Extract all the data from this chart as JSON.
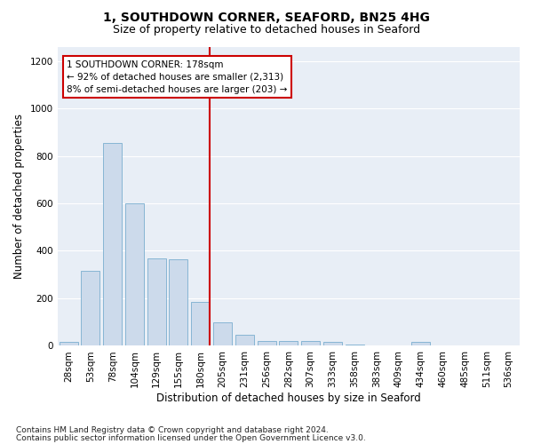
{
  "title": "1, SOUTHDOWN CORNER, SEAFORD, BN25 4HG",
  "subtitle": "Size of property relative to detached houses in Seaford",
  "xlabel": "Distribution of detached houses by size in Seaford",
  "ylabel": "Number of detached properties",
  "footnote1": "Contains HM Land Registry data © Crown copyright and database right 2024.",
  "footnote2": "Contains public sector information licensed under the Open Government Licence v3.0.",
  "annotation_title": "1 SOUTHDOWN CORNER: 178sqm",
  "annotation_line1": "← 92% of detached houses are smaller (2,313)",
  "annotation_line2": "8% of semi-detached houses are larger (203) →",
  "bar_color": "#ccdaeb",
  "bar_edge_color": "#7aaecf",
  "marker_color": "#cc0000",
  "annotation_box_color": "#cc0000",
  "background_color": "#e8eef6",
  "grid_color": "#ffffff",
  "categories": [
    "28sqm",
    "53sqm",
    "78sqm",
    "104sqm",
    "129sqm",
    "155sqm",
    "180sqm",
    "205sqm",
    "231sqm",
    "256sqm",
    "282sqm",
    "307sqm",
    "333sqm",
    "358sqm",
    "383sqm",
    "409sqm",
    "434sqm",
    "460sqm",
    "485sqm",
    "511sqm",
    "536sqm"
  ],
  "values": [
    15,
    315,
    855,
    600,
    370,
    365,
    185,
    100,
    45,
    20,
    20,
    20,
    15,
    5,
    0,
    0,
    15,
    0,
    0,
    0,
    0
  ],
  "ylim": [
    0,
    1260
  ],
  "yticks": [
    0,
    200,
    400,
    600,
    800,
    1000,
    1200
  ],
  "marker_bar_index": 6,
  "title_fontsize": 10,
  "subtitle_fontsize": 9,
  "axis_label_fontsize": 8.5,
  "tick_fontsize": 7.5,
  "annotation_fontsize": 7.5,
  "footnote_fontsize": 6.5
}
